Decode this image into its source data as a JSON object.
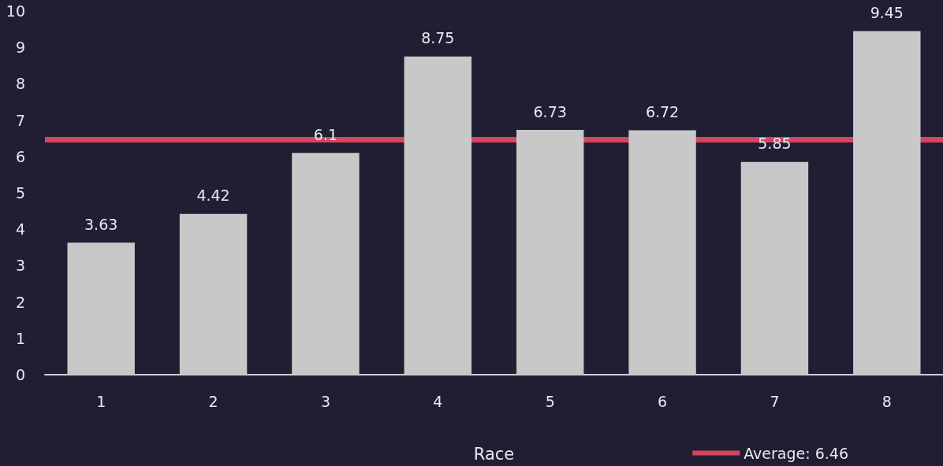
{
  "chart_data": {
    "type": "bar",
    "xlabel": "Race",
    "categories": [
      "1",
      "2",
      "3",
      "4",
      "5",
      "6",
      "7",
      "8"
    ],
    "values": [
      3.63,
      4.42,
      6.1,
      8.75,
      6.73,
      6.72,
      5.85,
      9.45
    ],
    "color": "#c8c8c8",
    "ylim": [
      0,
      10
    ],
    "yticks": [
      0,
      1,
      2,
      3,
      4,
      5,
      6,
      7,
      8,
      9,
      10
    ],
    "grid": false,
    "data_labels": true,
    "legend": "bottom right",
    "ref_lines": [
      {
        "axis": "y",
        "value": 6.46,
        "label": "Average: 6.46",
        "color": "#d9435e"
      }
    ]
  }
}
